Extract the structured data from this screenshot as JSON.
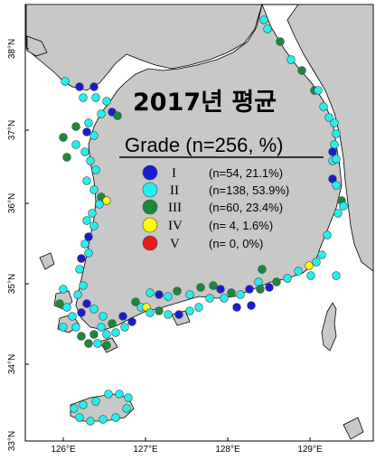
{
  "map": {
    "title": "2017년 평균",
    "legend": {
      "title": "Grade (n=256, %)",
      "items": [
        {
          "grade": "I",
          "count": "(n=54, 21.1%)",
          "color": "#1a1ad8"
        },
        {
          "grade": "II",
          "count": "(n=138, 53.9%)",
          "color": "#22f0f0"
        },
        {
          "grade": "III",
          "count": "(n=60, 23.4%)",
          "color": "#1a8a3a"
        },
        {
          "grade": "IV",
          "count": "(n= 4, 1.6%)",
          "color": "#ffff00"
        },
        {
          "grade": "V",
          "count": "(n= 0, 0%)",
          "color": "#e81a1a"
        }
      ]
    },
    "lon_ticks": [
      "126°E",
      "127°E",
      "128°E",
      "129°E"
    ],
    "lat_ticks": [
      "38°N",
      "37°N",
      "36°N",
      "35°N",
      "34°N",
      "33°N"
    ],
    "colors": {
      "land": "#c8c8c8",
      "sea": "#ffffff",
      "coastline": "#000000"
    }
  }
}
